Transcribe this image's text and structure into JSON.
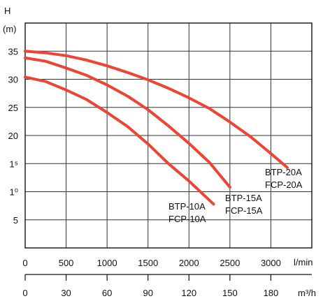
{
  "chart_data": {
    "type": "line",
    "y_axis": {
      "label_line1": "H",
      "label_line2": "(m)",
      "range": [
        0,
        40
      ],
      "ticks": [
        {
          "value": 35,
          "label": "35"
        },
        {
          "value": 30,
          "label": "30"
        },
        {
          "value": 25,
          "label": "25"
        },
        {
          "value": 20,
          "label": "20"
        },
        {
          "value": 15,
          "label": "1⁵"
        },
        {
          "value": 10,
          "label": "1⁰"
        },
        {
          "value": 5,
          "label": "5"
        }
      ]
    },
    "x_axis": {
      "unit_label": "l/min",
      "range": [
        0,
        3500
      ],
      "ticks": [
        {
          "value": 0,
          "label": "0"
        },
        {
          "value": 500,
          "label": "500"
        },
        {
          "value": 1000,
          "label": "1000"
        },
        {
          "value": 1500,
          "label": "1500"
        },
        {
          "value": 2000,
          "label": "2000"
        },
        {
          "value": 2500,
          "label": "2500"
        },
        {
          "value": 3000,
          "label": "3000"
        }
      ]
    },
    "x_axis_secondary": {
      "unit_label": "m³/h",
      "ticks": [
        {
          "value": 0,
          "label": "0"
        },
        {
          "value": 30,
          "label": "30"
        },
        {
          "value": 60,
          "label": "60"
        },
        {
          "value": 90,
          "label": "90"
        },
        {
          "value": 120,
          "label": "120"
        },
        {
          "value": 150,
          "label": "150"
        },
        {
          "value": 180,
          "label": "180"
        }
      ]
    },
    "grid": true,
    "color": "#ee4433",
    "series": [
      {
        "name_line1": "BTP-20A",
        "name_line2": "FCP-20A",
        "x": [
          0,
          250,
          500,
          750,
          1000,
          1250,
          1500,
          1750,
          2000,
          2250,
          2500,
          2750,
          3000,
          3200
        ],
        "y": [
          35.0,
          34.7,
          34.2,
          33.4,
          32.4,
          31.2,
          29.9,
          28.4,
          26.7,
          24.8,
          22.4,
          19.8,
          16.8,
          14.3
        ]
      },
      {
        "name_line1": "BTP-15A",
        "name_line2": "FCP-15A",
        "x": [
          0,
          250,
          500,
          750,
          1000,
          1250,
          1500,
          1750,
          2000,
          2250,
          2500
        ],
        "y": [
          33.8,
          33.2,
          32.0,
          30.7,
          29.0,
          27.0,
          24.6,
          21.7,
          18.6,
          15.2,
          10.8
        ]
      },
      {
        "name_line1": "BTP-10A",
        "name_line2": "FCP-10A",
        "x": [
          0,
          250,
          500,
          750,
          1000,
          1250,
          1500,
          1750,
          2000,
          2300
        ],
        "y": [
          30.4,
          29.6,
          28.1,
          26.4,
          24.1,
          21.6,
          18.5,
          15.0,
          11.9,
          7.8
        ]
      }
    ]
  }
}
